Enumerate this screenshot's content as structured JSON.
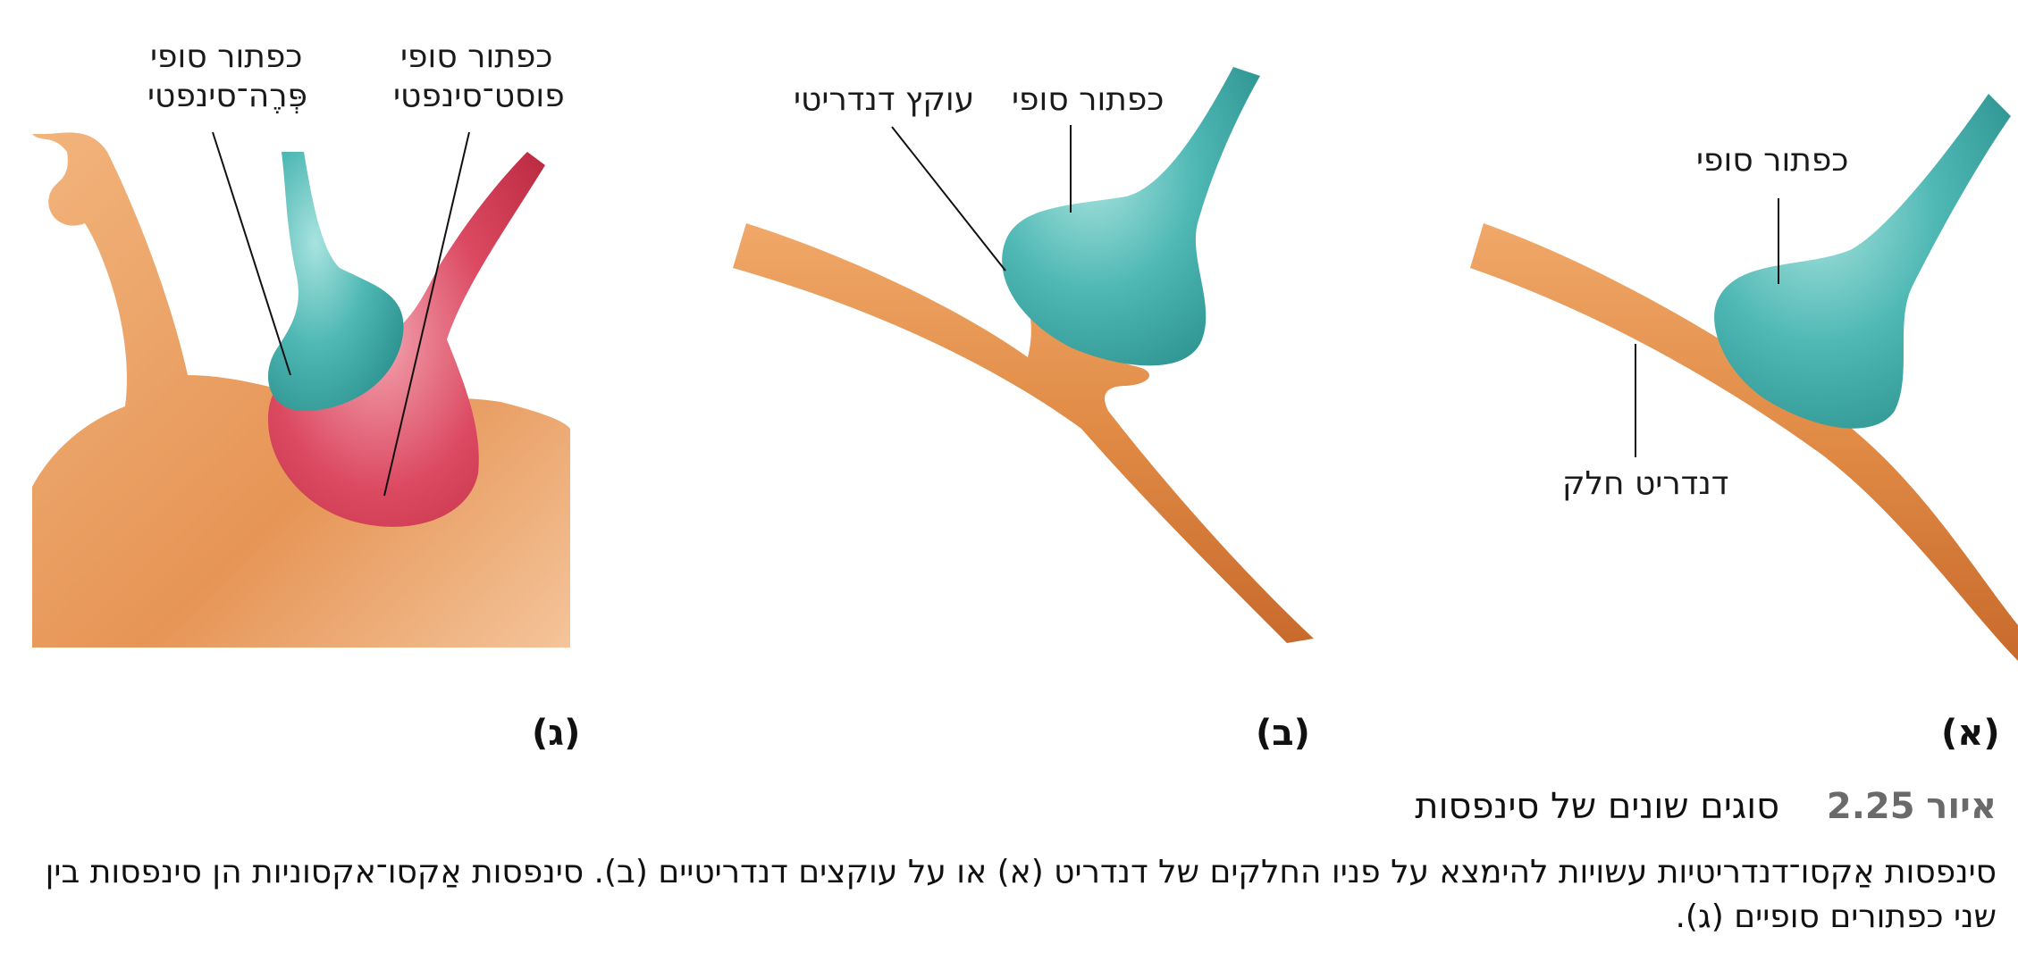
{
  "panel_a": {
    "tag": "(א)",
    "label_terminal": "כפתור סופי",
    "label_dendrite": "דנדריט חלק"
  },
  "panel_b": {
    "tag": "(ב)",
    "label_terminal": "כפתור סופי",
    "label_spine": "עוקץ דנדריטי"
  },
  "panel_c": {
    "tag": "(ג)",
    "label_pre_1": "כפתור סופי",
    "label_pre_2": "פְּרֶה־סינפטי",
    "label_post_1": "כפתור סופי",
    "label_post_2": "פוסט־סינפטי"
  },
  "caption": {
    "figure_word": "איור",
    "figure_number": "2.25",
    "title": "סוגים שונים של סינפסות",
    "body": "סינפסות אַקסו־דנדריטיות עשויות להימצא על פניו החלקים של דנדריט (א) או על עוקצים דנדריטיים (ב). סינפסות אַקסו־אקסוניות הן סינפסות בין שני כפתורים סופיים (ג)."
  },
  "colors": {
    "dendrite": "#e08a45",
    "terminal": "#3fa9a6",
    "post_terminal": "#d9364f",
    "background": "#ffffff"
  }
}
